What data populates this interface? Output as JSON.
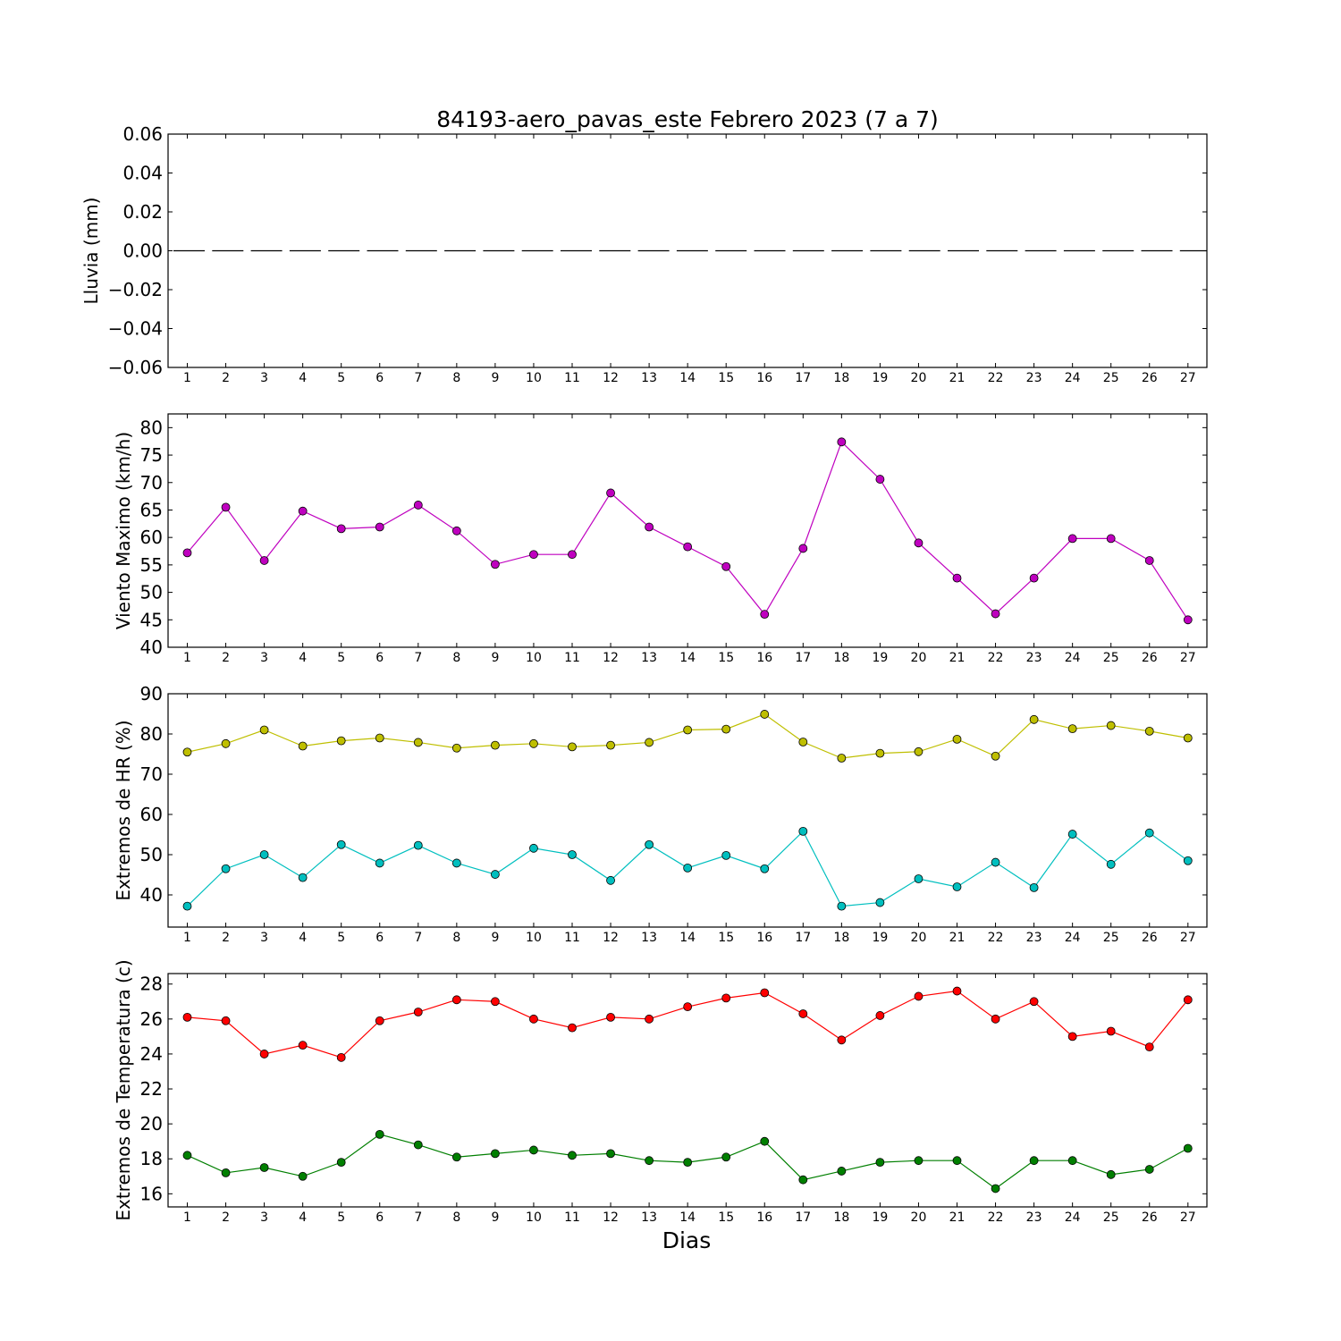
{
  "chart_data": {
    "type": "line",
    "title": "84193-aero_pavas_este Febrero 2023  (7 a 7)",
    "xlabel": "Dias",
    "categories": [
      1,
      2,
      3,
      4,
      5,
      6,
      7,
      8,
      9,
      10,
      11,
      12,
      13,
      14,
      15,
      16,
      17,
      18,
      19,
      20,
      21,
      22,
      23,
      24,
      25,
      26,
      27
    ],
    "panels": [
      {
        "ylabel": "Lluvia (mm)",
        "ylim": [
          -0.06,
          0.06
        ],
        "yticks": [
          -0.06,
          -0.04,
          -0.02,
          0.0,
          0.02,
          0.04,
          0.06
        ],
        "ytick_labels": [
          "−0.06",
          "−0.04",
          "−0.02",
          "0.00",
          "0.02",
          "0.04",
          "0.06"
        ],
        "series": [
          {
            "color": "#000000",
            "style": "dashed",
            "marker": false,
            "values": [
              0,
              0,
              0,
              0,
              0,
              0,
              0,
              0,
              0,
              0,
              0,
              0,
              0,
              0,
              0,
              0,
              0,
              0,
              0,
              0,
              0,
              0,
              0,
              0,
              0,
              0,
              0
            ]
          }
        ]
      },
      {
        "ylabel": "Viento Maximo (km/h)",
        "ylim": [
          40,
          82.5
        ],
        "yticks": [
          40,
          45,
          50,
          55,
          60,
          65,
          70,
          75,
          80
        ],
        "ytick_labels": [
          "40",
          "45",
          "50",
          "55",
          "60",
          "65",
          "70",
          "75",
          "80"
        ],
        "series": [
          {
            "color": "#bf00bf",
            "style": "solid",
            "marker": true,
            "values": [
              57.2,
              65.5,
              55.8,
              64.8,
              61.6,
              61.9,
              65.9,
              61.2,
              55.1,
              56.9,
              56.9,
              68.1,
              61.9,
              58.3,
              54.7,
              46.0,
              58.0,
              77.4,
              70.6,
              59.0,
              52.6,
              46.1,
              52.6,
              59.8,
              59.8,
              55.8,
              45.0
            ]
          }
        ]
      },
      {
        "ylabel": "Extremos de HR (%)",
        "ylim": [
          32,
          90
        ],
        "yticks": [
          40,
          50,
          60,
          70,
          80,
          90
        ],
        "ytick_labels": [
          "40",
          "50",
          "60",
          "70",
          "80",
          "90"
        ],
        "series": [
          {
            "color": "#bfbf00",
            "style": "solid",
            "marker": true,
            "values": [
              75.5,
              77.6,
              81.0,
              77.0,
              78.3,
              79.0,
              77.9,
              76.5,
              77.2,
              77.6,
              76.8,
              77.2,
              77.9,
              81.0,
              81.2,
              84.9,
              78.0,
              74.0,
              75.2,
              75.6,
              78.7,
              74.5,
              83.6,
              81.3,
              82.1,
              80.7,
              79.0
            ]
          },
          {
            "color": "#00bfbf",
            "style": "solid",
            "marker": true,
            "values": [
              37.2,
              46.5,
              50.0,
              44.3,
              52.5,
              47.9,
              52.3,
              47.9,
              45.1,
              51.6,
              50.0,
              43.6,
              52.5,
              46.7,
              49.8,
              46.5,
              55.8,
              37.2,
              38.1,
              44.0,
              42.0,
              48.1,
              41.8,
              55.1,
              47.6,
              55.4,
              48.5
            ]
          }
        ]
      },
      {
        "ylabel": "Extremos de Temperatura (c)",
        "ylim": [
          15.25,
          28.6
        ],
        "yticks": [
          16,
          18,
          20,
          22,
          24,
          26,
          28
        ],
        "ytick_labels": [
          "16",
          "18",
          "20",
          "22",
          "24",
          "26",
          "28"
        ],
        "series": [
          {
            "color": "#ff0000",
            "style": "solid",
            "marker": true,
            "values": [
              26.1,
              25.9,
              24.0,
              24.5,
              23.8,
              25.9,
              26.4,
              27.1,
              27.0,
              26.0,
              25.5,
              26.1,
              26.0,
              26.7,
              27.2,
              27.5,
              26.3,
              24.8,
              26.2,
              27.3,
              27.6,
              26.0,
              27.0,
              25.0,
              25.3,
              24.4,
              27.1
            ]
          },
          {
            "color": "#007f00",
            "style": "solid",
            "marker": true,
            "values": [
              18.2,
              17.2,
              17.5,
              17.0,
              17.8,
              19.4,
              18.8,
              18.1,
              18.3,
              18.5,
              18.2,
              18.3,
              17.9,
              17.8,
              18.1,
              19.0,
              16.8,
              17.3,
              17.8,
              17.9,
              17.9,
              16.3,
              17.9,
              17.9,
              17.1,
              17.4,
              18.6
            ]
          }
        ]
      }
    ]
  }
}
